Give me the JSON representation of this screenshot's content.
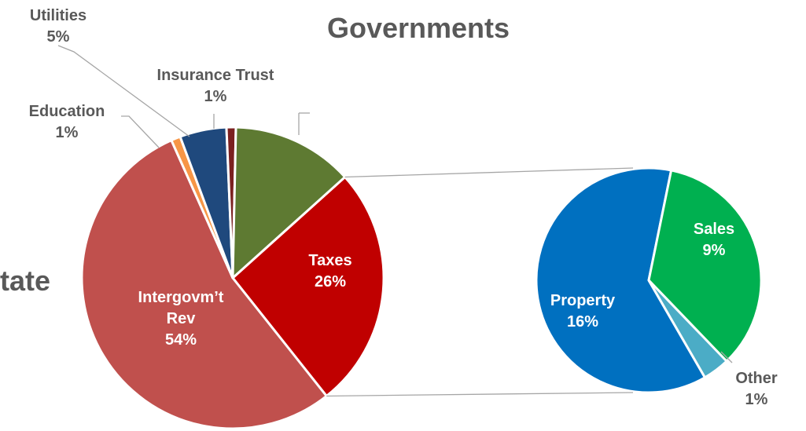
{
  "chart_data": {
    "type": "pie",
    "subtype": "pie-of-pie",
    "title": "Governments",
    "side_title": "tate",
    "main_pie": {
      "slices": [
        {
          "label": "Taxes",
          "value": 26,
          "value_label": "26%",
          "color": "#c00000"
        },
        {
          "label": "Intergovm't Rev",
          "label_lines": [
            "Intergovm’t",
            "Rev"
          ],
          "value": 54,
          "value_label": "54%",
          "color": "#c0504d"
        },
        {
          "label": "Education",
          "value": 1,
          "value_label": "1%",
          "color": "#f79646"
        },
        {
          "label": "Utilities",
          "value": 5,
          "value_label": "5%",
          "color": "#1f497d"
        },
        {
          "label": "Insurance Trust",
          "value": 1,
          "value_label": "1%",
          "color": "#7b2020"
        },
        {
          "label": "",
          "value": 13,
          "value_label": "",
          "color": "#5e7a32"
        }
      ]
    },
    "secondary_pie": {
      "source_slice": "Taxes",
      "slices": [
        {
          "label": "Property",
          "value": 16,
          "value_label": "16%",
          "color": "#0070c0"
        },
        {
          "label": "Sales",
          "value": 9,
          "value_label": "9%",
          "color": "#00b050"
        },
        {
          "label": "Other",
          "value": 1,
          "value_label": "1%",
          "color": "#4bacc6"
        }
      ]
    }
  }
}
